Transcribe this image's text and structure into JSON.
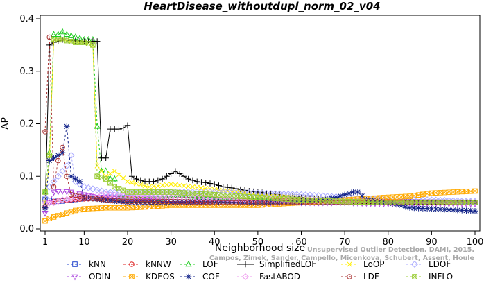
{
  "chart_data": {
    "type": "line",
    "title": "HeartDisease_withoutdupl_norm_02_v04",
    "xlabel": "Neighborhood size",
    "ylabel": "AP",
    "xlim": [
      1,
      100
    ],
    "ylim": [
      0,
      0.4
    ],
    "xticks": [
      1,
      10,
      20,
      30,
      40,
      50,
      60,
      70,
      80,
      90,
      100
    ],
    "yticks": [
      0.0,
      0.1,
      0.2,
      0.3,
      0.4
    ],
    "grid": false,
    "legend_position": "bottom",
    "series": [
      {
        "name": "kNN",
        "color": "#2244cc",
        "marker": "square",
        "dash": "3,3",
        "points": [
          [
            1,
            0.056
          ],
          [
            2,
            0.054
          ],
          [
            3,
            0.052
          ],
          [
            5,
            0.053
          ],
          [
            8,
            0.056
          ],
          [
            10,
            0.058
          ],
          [
            15,
            0.06
          ],
          [
            20,
            0.059
          ],
          [
            25,
            0.057
          ],
          [
            30,
            0.056
          ],
          [
            40,
            0.055
          ],
          [
            50,
            0.054
          ],
          [
            60,
            0.053
          ],
          [
            70,
            0.052
          ],
          [
            80,
            0.052
          ],
          [
            90,
            0.051
          ],
          [
            100,
            0.05
          ]
        ]
      },
      {
        "name": "kNNW",
        "color": "#dd2222",
        "marker": "circle-dot",
        "dash": "3,3",
        "points": [
          [
            1,
            0.042
          ],
          [
            2,
            0.05
          ],
          [
            3,
            0.052
          ],
          [
            5,
            0.054
          ],
          [
            8,
            0.056
          ],
          [
            10,
            0.057
          ],
          [
            15,
            0.058
          ],
          [
            20,
            0.057
          ],
          [
            30,
            0.056
          ],
          [
            40,
            0.055
          ],
          [
            50,
            0.054
          ],
          [
            60,
            0.053
          ],
          [
            70,
            0.052
          ],
          [
            80,
            0.052
          ],
          [
            90,
            0.051
          ],
          [
            100,
            0.05
          ]
        ]
      },
      {
        "name": "LOF",
        "color": "#22cc22",
        "marker": "triangle-up",
        "dash": "3,3",
        "points": [
          [
            1,
            0.07
          ],
          [
            2,
            0.145
          ],
          [
            3,
            0.37
          ],
          [
            4,
            0.37
          ],
          [
            5,
            0.375
          ],
          [
            6,
            0.37
          ],
          [
            8,
            0.365
          ],
          [
            10,
            0.36
          ],
          [
            12,
            0.36
          ],
          [
            13,
            0.195
          ],
          [
            14,
            0.11
          ],
          [
            15,
            0.11
          ],
          [
            16,
            0.095
          ],
          [
            17,
            0.095
          ],
          [
            18,
            0.06
          ],
          [
            20,
            0.055
          ],
          [
            25,
            0.055
          ],
          [
            30,
            0.06
          ],
          [
            35,
            0.058
          ],
          [
            40,
            0.055
          ],
          [
            50,
            0.052
          ],
          [
            60,
            0.05
          ],
          [
            70,
            0.05
          ],
          [
            80,
            0.05
          ],
          [
            90,
            0.05
          ],
          [
            100,
            0.05
          ]
        ]
      },
      {
        "name": "SimplifiedLOF",
        "color": "#000000",
        "marker": "plus",
        "dash": "",
        "points": [
          [
            1,
            0.04
          ],
          [
            2,
            0.35
          ],
          [
            3,
            0.355
          ],
          [
            5,
            0.36
          ],
          [
            8,
            0.358
          ],
          [
            10,
            0.357
          ],
          [
            13,
            0.357
          ],
          [
            14,
            0.135
          ],
          [
            15,
            0.135
          ],
          [
            16,
            0.19
          ],
          [
            17,
            0.19
          ],
          [
            18,
            0.19
          ],
          [
            19,
            0.192
          ],
          [
            20,
            0.197
          ],
          [
            21,
            0.1
          ],
          [
            22,
            0.095
          ],
          [
            24,
            0.09
          ],
          [
            26,
            0.09
          ],
          [
            28,
            0.095
          ],
          [
            30,
            0.105
          ],
          [
            31,
            0.11
          ],
          [
            32,
            0.105
          ],
          [
            34,
            0.095
          ],
          [
            36,
            0.09
          ],
          [
            38,
            0.088
          ],
          [
            40,
            0.085
          ],
          [
            42,
            0.08
          ],
          [
            44,
            0.078
          ],
          [
            46,
            0.075
          ],
          [
            48,
            0.072
          ],
          [
            50,
            0.07
          ],
          [
            55,
            0.065
          ],
          [
            60,
            0.06
          ],
          [
            65,
            0.055
          ],
          [
            70,
            0.052
          ],
          [
            80,
            0.05
          ],
          [
            90,
            0.05
          ],
          [
            100,
            0.05
          ]
        ]
      },
      {
        "name": "LoOP",
        "color": "#ffee00",
        "marker": "x",
        "dash": "3,3",
        "points": [
          [
            1,
            0.05
          ],
          [
            2,
            0.13
          ],
          [
            3,
            0.36
          ],
          [
            5,
            0.36
          ],
          [
            8,
            0.355
          ],
          [
            10,
            0.355
          ],
          [
            12,
            0.35
          ],
          [
            13,
            0.12
          ],
          [
            15,
            0.1
          ],
          [
            17,
            0.11
          ],
          [
            20,
            0.09
          ],
          [
            25,
            0.08
          ],
          [
            30,
            0.085
          ],
          [
            35,
            0.08
          ],
          [
            40,
            0.075
          ],
          [
            50,
            0.065
          ],
          [
            60,
            0.06
          ],
          [
            70,
            0.055
          ],
          [
            80,
            0.052
          ],
          [
            90,
            0.05
          ],
          [
            100,
            0.05
          ]
        ]
      },
      {
        "name": "LDOF",
        "color": "#aaaaff",
        "marker": "diamond",
        "dash": "3,3",
        "points": [
          [
            1,
            0.06
          ],
          [
            2,
            0.08
          ],
          [
            4,
            0.1
          ],
          [
            6,
            0.12
          ],
          [
            7,
            0.14
          ],
          [
            8,
            0.09
          ],
          [
            10,
            0.08
          ],
          [
            15,
            0.07
          ],
          [
            20,
            0.068
          ],
          [
            30,
            0.07
          ],
          [
            40,
            0.07
          ],
          [
            50,
            0.068
          ],
          [
            60,
            0.065
          ],
          [
            70,
            0.06
          ],
          [
            80,
            0.055
          ],
          [
            90,
            0.055
          ],
          [
            100,
            0.052
          ]
        ]
      },
      {
        "name": "ODIN",
        "color": "#aa44dd",
        "marker": "triangle-down",
        "dash": "3,3",
        "points": [
          [
            1,
            0.03
          ],
          [
            2,
            0.05
          ],
          [
            3,
            0.07
          ],
          [
            5,
            0.072
          ],
          [
            7,
            0.07
          ],
          [
            10,
            0.065
          ],
          [
            13,
            0.06
          ],
          [
            15,
            0.06
          ],
          [
            20,
            0.055
          ],
          [
            30,
            0.052
          ],
          [
            40,
            0.05
          ],
          [
            50,
            0.05
          ],
          [
            60,
            0.05
          ],
          [
            70,
            0.05
          ],
          [
            80,
            0.048
          ],
          [
            90,
            0.048
          ],
          [
            100,
            0.048
          ]
        ]
      },
      {
        "name": "KDEOS",
        "color": "#ffaa00",
        "marker": "square-x",
        "dash": "3,3",
        "points": [
          [
            1,
            0.015
          ],
          [
            2,
            0.02
          ],
          [
            4,
            0.025
          ],
          [
            6,
            0.03
          ],
          [
            8,
            0.035
          ],
          [
            10,
            0.038
          ],
          [
            15,
            0.04
          ],
          [
            20,
            0.04
          ],
          [
            25,
            0.042
          ],
          [
            30,
            0.045
          ],
          [
            40,
            0.045
          ],
          [
            50,
            0.045
          ],
          [
            60,
            0.05
          ],
          [
            70,
            0.055
          ],
          [
            80,
            0.06
          ],
          [
            85,
            0.062
          ],
          [
            90,
            0.068
          ],
          [
            95,
            0.07
          ],
          [
            100,
            0.072
          ]
        ]
      },
      {
        "name": "COF",
        "color": "#112288",
        "marker": "asterisk",
        "dash": "3,3",
        "points": [
          [
            1,
            0.04
          ],
          [
            2,
            0.13
          ],
          [
            3,
            0.135
          ],
          [
            4,
            0.14
          ],
          [
            5,
            0.145
          ],
          [
            6,
            0.195
          ],
          [
            7,
            0.1
          ],
          [
            8,
            0.095
          ],
          [
            9,
            0.09
          ],
          [
            10,
            0.06
          ],
          [
            15,
            0.055
          ],
          [
            20,
            0.05
          ],
          [
            30,
            0.05
          ],
          [
            40,
            0.052
          ],
          [
            50,
            0.05
          ],
          [
            60,
            0.052
          ],
          [
            65,
            0.055
          ],
          [
            68,
            0.06
          ],
          [
            70,
            0.065
          ],
          [
            72,
            0.07
          ],
          [
            73,
            0.07
          ],
          [
            75,
            0.055
          ],
          [
            80,
            0.05
          ],
          [
            85,
            0.04
          ],
          [
            90,
            0.038
          ],
          [
            95,
            0.036
          ],
          [
            100,
            0.034
          ]
        ]
      },
      {
        "name": "FastABOD",
        "color": "#ee99ee",
        "marker": "diamond",
        "dash": "3,3",
        "points": [
          [
            1,
            0.05
          ],
          [
            3,
            0.05
          ],
          [
            5,
            0.055
          ],
          [
            10,
            0.06
          ],
          [
            15,
            0.065
          ],
          [
            20,
            0.062
          ],
          [
            30,
            0.06
          ],
          [
            40,
            0.058
          ],
          [
            50,
            0.055
          ],
          [
            60,
            0.055
          ],
          [
            70,
            0.052
          ],
          [
            80,
            0.05
          ],
          [
            90,
            0.05
          ],
          [
            100,
            0.05
          ]
        ]
      },
      {
        "name": "LDF",
        "color": "#aa3333",
        "marker": "circle-dot",
        "dash": "3,3",
        "points": [
          [
            1,
            0.185
          ],
          [
            2,
            0.365
          ],
          [
            3,
            0.08
          ],
          [
            4,
            0.13
          ],
          [
            5,
            0.155
          ],
          [
            6,
            0.1
          ],
          [
            7,
            0.065
          ],
          [
            10,
            0.06
          ],
          [
            15,
            0.055
          ],
          [
            20,
            0.052
          ],
          [
            30,
            0.052
          ],
          [
            40,
            0.05
          ],
          [
            50,
            0.05
          ],
          [
            60,
            0.05
          ],
          [
            70,
            0.05
          ],
          [
            80,
            0.05
          ],
          [
            90,
            0.05
          ],
          [
            100,
            0.05
          ]
        ]
      },
      {
        "name": "INFLO",
        "color": "#99cc33",
        "marker": "square-x",
        "dash": "3,3",
        "points": [
          [
            1,
            0.07
          ],
          [
            2,
            0.14
          ],
          [
            3,
            0.36
          ],
          [
            5,
            0.36
          ],
          [
            8,
            0.355
          ],
          [
            10,
            0.355
          ],
          [
            12,
            0.35
          ],
          [
            13,
            0.1
          ],
          [
            15,
            0.095
          ],
          [
            17,
            0.08
          ],
          [
            20,
            0.07
          ],
          [
            30,
            0.07
          ],
          [
            40,
            0.065
          ],
          [
            50,
            0.06
          ],
          [
            60,
            0.055
          ],
          [
            70,
            0.052
          ],
          [
            80,
            0.05
          ],
          [
            90,
            0.05
          ],
          [
            100,
            0.05
          ]
        ]
      }
    ],
    "credit_lines": [
      "Unsupervised Outlier Detection. DAMI, 2015.",
      "Campos, Zimek, Sander, Campello, Micenkova, Schubert, Assent, Houle"
    ]
  }
}
